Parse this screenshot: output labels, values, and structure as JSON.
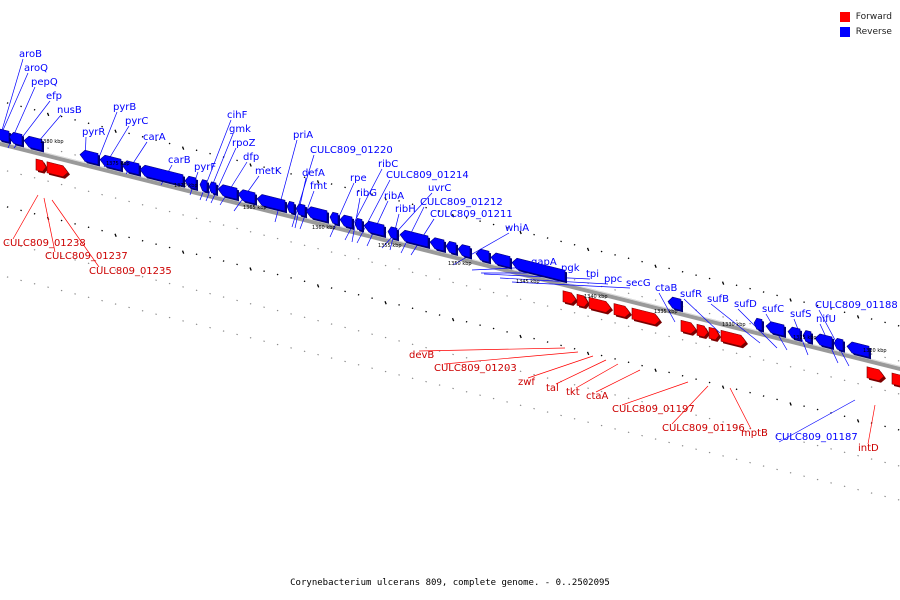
{
  "legend": {
    "forward_label": "Forward",
    "reverse_label": "Reverse",
    "forward_color": "#ff0000",
    "reverse_color": "#0000ff"
  },
  "caption": "Corynebacterium ulcerans 809, complete genome. - 0..2502095",
  "scale_labels": [
    "1380 kbp",
    "1375 kbp",
    "1370 kbp",
    "1365 kbp",
    "1360 kbp",
    "1355 kbp",
    "1350 kbp",
    "1345 kbp",
    "1340 kbp",
    "1335 kbp",
    "1330 kbp",
    "1325 kbp",
    "1320 kbp"
  ],
  "reverse_genes": [
    "aroB",
    "aroQ",
    "pepQ",
    "efp",
    "nusB",
    "pyrR",
    "pyrB",
    "pyrC",
    "carA",
    "carB",
    "pyrF",
    "cihF",
    "gmk",
    "rpoZ",
    "dfp",
    "metK",
    "priA",
    "CULC809_01220",
    "defA",
    "fmt",
    "rpe",
    "ribC",
    "ribG",
    "CULC809_01214",
    "ribA",
    "uvrC",
    "ribH",
    "CULC809_01212",
    "CULC809_01211",
    "whiA",
    "gapA",
    "pgk",
    "tpi",
    "ppc",
    "secG",
    "ctaB",
    "sufR",
    "sufB",
    "sufD",
    "sufC",
    "sufS",
    "nifU",
    "CULC809_01188",
    "CULC809_01187"
  ],
  "forward_genes": [
    "CULC809_01238",
    "CULC809_01237",
    "CULC809_01235",
    "devB",
    "CULC809_01203",
    "zwf",
    "tal",
    "tkt",
    "ctaA",
    "CULC809_01197",
    "CULC809_01196",
    "mptB",
    "intD"
  ]
}
